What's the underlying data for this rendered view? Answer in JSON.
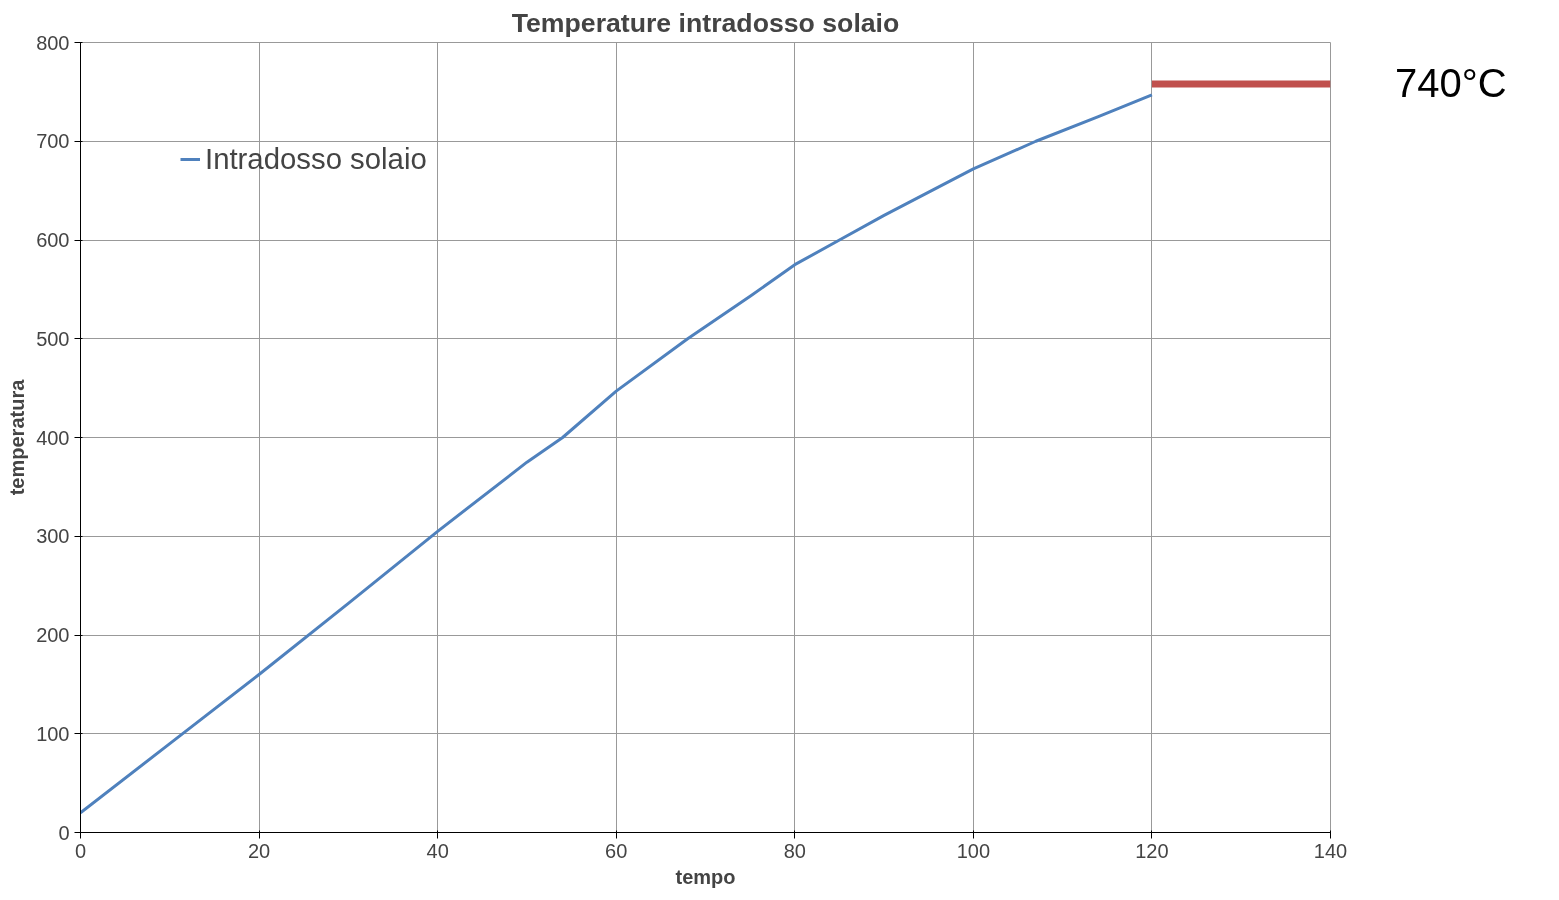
{
  "chart_data": {
    "type": "line",
    "title": "Temperature intradosso solaio",
    "xlabel": "tempo",
    "ylabel": "temperatura",
    "xlim": [
      0,
      140
    ],
    "xticks": [
      0,
      20,
      40,
      60,
      80,
      100,
      120,
      140
    ],
    "ylim": [
      0,
      800
    ],
    "yticks": [
      0,
      100,
      200,
      300,
      400,
      500,
      600,
      700,
      800
    ],
    "grid": true,
    "legend": "top left",
    "line_style": "solid",
    "series": [
      {
        "name": "Intradosso solaio",
        "color": "#4f81bd",
        "x": [
          0,
          10,
          20,
          30,
          40,
          50,
          54,
          60,
          68,
          75,
          80,
          85,
          90,
          100,
          107,
          114,
          120
        ],
        "values": [
          20,
          90,
          160,
          232,
          305,
          375,
          400,
          447,
          500,
          543,
          575,
          600,
          625,
          672,
          700,
          725,
          747
        ]
      },
      {
        "color": "#c0504d",
        "x": [
          120,
          140
        ],
        "values": [
          758,
          758
        ]
      }
    ],
    "annotations": [
      "740°C"
    ]
  }
}
